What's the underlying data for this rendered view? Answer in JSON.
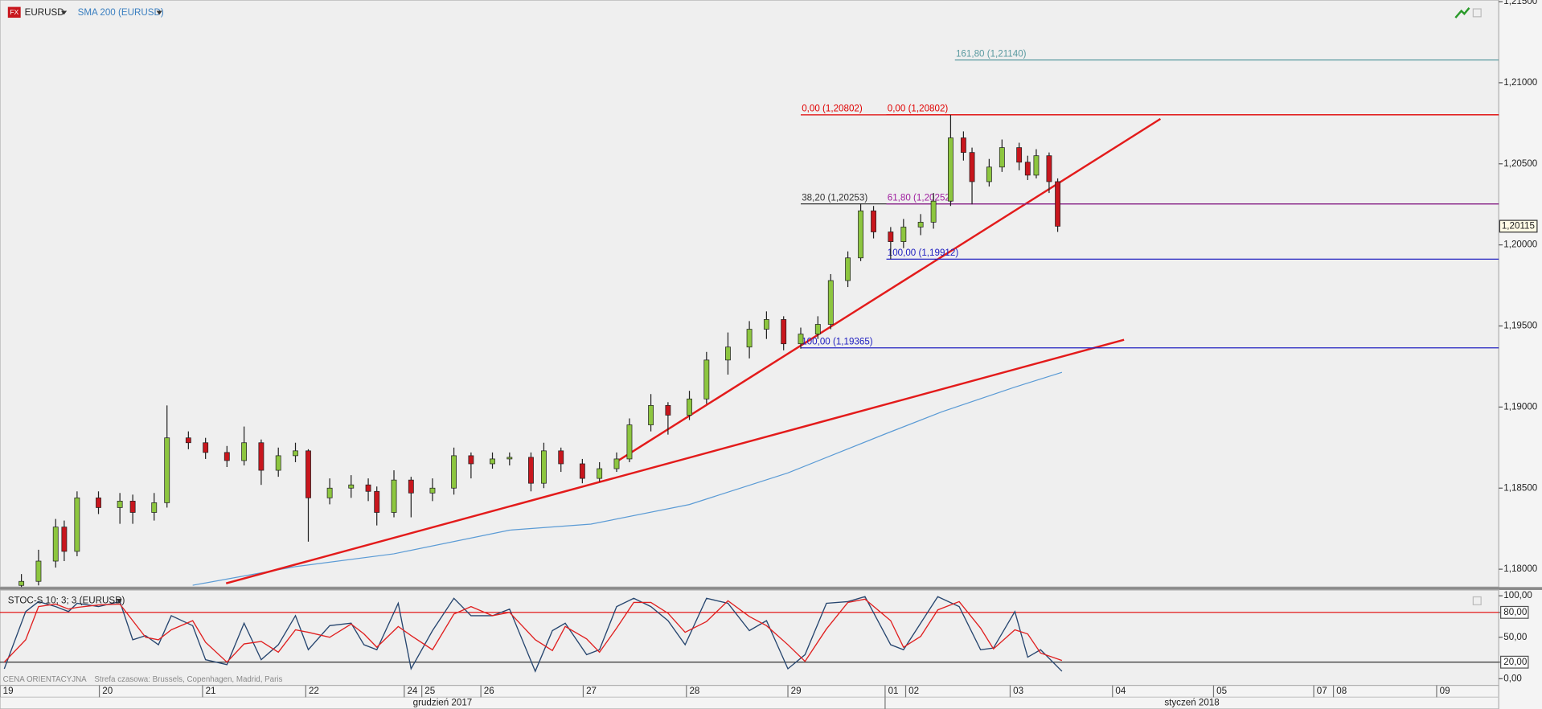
{
  "chart_data": [
    {
      "type": "candlestick",
      "symbol": "EURUSD",
      "xlim": [
        0,
        350
      ],
      "ylim": [
        1.1789,
        1.2151
      ],
      "yticks": [
        {
          "value": 1.18,
          "label": "1,18000"
        },
        {
          "value": 1.185,
          "label": "1,18500"
        },
        {
          "value": 1.19,
          "label": "1,19000"
        },
        {
          "value": 1.195,
          "label": "1,19500"
        },
        {
          "value": 1.2,
          "label": "1,20000"
        },
        {
          "value": 1.205,
          "label": "1,20500"
        },
        {
          "value": 1.21,
          "label": "1,21000"
        },
        {
          "value": 1.215,
          "label": "1,21500"
        }
      ],
      "up_color": "#8dc63f",
      "down_color": "#c8161d",
      "x": [
        5,
        9,
        13,
        15,
        18,
        23,
        28,
        31,
        36,
        39,
        44,
        48,
        53,
        57,
        61,
        65,
        69,
        72,
        77,
        82,
        86,
        88,
        92,
        96,
        101,
        106,
        110,
        115,
        119,
        124,
        127,
        131,
        136,
        140,
        144,
        147,
        152,
        156,
        161,
        165,
        170,
        175,
        179,
        183,
        187,
        191,
        194,
        198,
        201,
        204,
        208,
        211,
        215,
        218,
        222,
        225,
        227,
        231,
        234,
        238,
        240,
        242,
        245,
        247
      ],
      "open": [
        1.179,
        1.17925,
        1.1805,
        1.1826,
        1.1811,
        1.1844,
        1.1838,
        1.1842,
        1.1835,
        1.1841,
        1.1881,
        1.1878,
        1.1872,
        1.1867,
        1.1878,
        1.1861,
        1.187,
        1.1873,
        1.1844,
        1.185,
        1.1852,
        1.1848,
        1.1835,
        1.1855,
        1.1847,
        1.185,
        1.187,
        1.1865,
        1.1868,
        1.1869,
        1.1853,
        1.1873,
        1.1865,
        1.1856,
        1.1862,
        1.1868,
        1.1889,
        1.1901,
        1.1895,
        1.1905,
        1.1929,
        1.1937,
        1.1948,
        1.1954,
        1.1939,
        1.1945,
        1.1951,
        1.1978,
        1.1992,
        1.2021,
        1.2008,
        1.2002,
        1.2011,
        1.2014,
        1.2027,
        1.2066,
        1.2057,
        1.2039,
        1.2048,
        1.206,
        1.2051,
        1.2043,
        1.2055,
        1.2039
      ],
      "high": [
        1.1797,
        1.1812,
        1.1831,
        1.183,
        1.1848,
        1.1848,
        1.1847,
        1.1846,
        1.1847,
        1.1901,
        1.1885,
        1.1881,
        1.1876,
        1.1888,
        1.188,
        1.1875,
        1.1878,
        1.1874,
        1.1856,
        1.1858,
        1.1856,
        1.1851,
        1.1861,
        1.1857,
        1.1856,
        1.1875,
        1.1872,
        1.1872,
        1.1872,
        1.1872,
        1.1878,
        1.1875,
        1.1868,
        1.1866,
        1.1872,
        1.1893,
        1.1908,
        1.1903,
        1.191,
        1.1934,
        1.1946,
        1.1953,
        1.1959,
        1.1956,
        1.1949,
        1.1956,
        1.1982,
        1.1996,
        1.20253,
        1.2024,
        1.2011,
        1.2016,
        1.2019,
        1.2032,
        1.20802,
        1.207,
        1.206,
        1.2053,
        1.2065,
        1.2063,
        1.2055,
        1.2059,
        1.2057,
        1.2041
      ],
      "low": [
        1.1789,
        1.179,
        1.1801,
        1.1805,
        1.1808,
        1.1834,
        1.1828,
        1.1828,
        1.183,
        1.1838,
        1.1874,
        1.1868,
        1.1863,
        1.1864,
        1.1852,
        1.1857,
        1.1866,
        1.1817,
        1.184,
        1.1844,
        1.1842,
        1.1827,
        1.1832,
        1.1832,
        1.1842,
        1.1846,
        1.1856,
        1.1862,
        1.1864,
        1.1848,
        1.185,
        1.186,
        1.1853,
        1.1854,
        1.186,
        1.1866,
        1.1885,
        1.1883,
        1.1892,
        1.1902,
        1.192,
        1.193,
        1.1942,
        1.1935,
        1.1936,
        1.1942,
        1.1948,
        1.1974,
        1.199,
        1.2004,
        1.19912,
        1.1998,
        1.2006,
        1.201,
        1.2024,
        1.2052,
        1.2025,
        1.2036,
        1.2045,
        1.2046,
        1.204,
        1.2041,
        1.2032,
        1.2008
      ],
      "close": [
        1.17925,
        1.1805,
        1.1826,
        1.1811,
        1.1844,
        1.1838,
        1.1842,
        1.1835,
        1.1841,
        1.1881,
        1.1878,
        1.1872,
        1.1867,
        1.1878,
        1.1861,
        1.187,
        1.1873,
        1.1844,
        1.185,
        1.1852,
        1.1848,
        1.1835,
        1.1855,
        1.1847,
        1.185,
        1.187,
        1.1865,
        1.1868,
        1.1869,
        1.1853,
        1.1873,
        1.1865,
        1.1856,
        1.1862,
        1.1868,
        1.1889,
        1.1901,
        1.1895,
        1.1905,
        1.1929,
        1.1937,
        1.1948,
        1.1954,
        1.1939,
        1.1945,
        1.1951,
        1.1978,
        1.1992,
        1.2021,
        1.2008,
        1.2002,
        1.2011,
        1.2014,
        1.2027,
        1.2066,
        1.2057,
        1.2039,
        1.2048,
        1.206,
        1.2051,
        1.2043,
        1.2055,
        1.2039,
        1.20115
      ],
      "sma": {
        "name": "SMA 200 (EURUSD)",
        "color": "#5b9bd5",
        "x": [
          45,
          69,
          92,
          119,
          138,
          161,
          184,
          207,
          220,
          237,
          248
        ],
        "values": [
          1.17901,
          1.18016,
          1.18095,
          1.18241,
          1.18278,
          1.18399,
          1.18594,
          1.18837,
          1.18971,
          1.19123,
          1.19214
        ]
      },
      "trendlines": [
        {
          "color": "#e31b1b",
          "x": [
            52.8,
            262.5
          ],
          "values": [
            1.17913,
            1.19415
          ]
        },
        {
          "color": "#e31b1b",
          "x": [
            143.5,
            271
          ],
          "values": [
            1.18655,
            1.20777
          ]
        }
      ],
      "fib_levels": [
        {
          "label": "161,80 (1,21140)",
          "value": 1.2114,
          "x": 223,
          "color": "#5a9aa0"
        },
        {
          "label": "0,00 (1,20802)",
          "value": 1.20802,
          "x": 187,
          "color": "#e00000"
        },
        {
          "label": "0,00 (1,20802)",
          "value": 1.20802,
          "x": 207,
          "color": "#e00000"
        },
        {
          "label": "38,20 (1,20253)",
          "value": 1.20253,
          "x": 187,
          "color": "#333333"
        },
        {
          "label": "61,80 (1,20252)",
          "value": 1.20252,
          "x": 207,
          "color": "#a020a0"
        },
        {
          "label": "100,00 (1,19912)",
          "value": 1.19912,
          "x": 207,
          "color": "#2020c0"
        },
        {
          "label": "100,00 (1,19365)",
          "value": 1.19365,
          "x": 187,
          "color": "#2020c0"
        }
      ],
      "last_price": {
        "value": 1.20115,
        "label": "1,20115"
      }
    },
    {
      "type": "line",
      "title": "STOC-S 10; 3; 3 (EURUSD)",
      "xlim": [
        0,
        350
      ],
      "ylim": [
        -8,
        107
      ],
      "yticks": [
        {
          "value": 0,
          "label": "0,00"
        },
        {
          "value": 20,
          "label": "20,00"
        },
        {
          "value": 50,
          "label": "50,00"
        },
        {
          "value": 80,
          "label": "80,00"
        },
        {
          "value": 100,
          "label": "100,00"
        }
      ],
      "levels": [
        {
          "value": 80,
          "color": "#e00000"
        },
        {
          "value": 20,
          "color": "#333333"
        }
      ],
      "x": [
        1,
        6,
        9,
        13,
        16,
        18,
        23,
        28,
        31,
        34,
        37,
        40,
        45,
        48,
        53,
        57,
        61,
        65,
        69,
        72,
        77,
        82,
        85,
        88,
        93,
        96,
        101,
        106,
        110,
        115,
        119,
        125,
        129,
        132,
        137,
        140,
        144,
        148,
        152,
        156,
        160,
        165,
        170,
        175,
        179,
        184,
        188,
        193,
        198,
        202,
        208,
        211,
        215,
        219,
        224,
        229,
        232,
        237,
        240,
        243,
        248
      ],
      "series": [
        {
          "color": "#27466f",
          "values": [
            12,
            81,
            93,
            87,
            81,
            91,
            87,
            93,
            47,
            52,
            41,
            76,
            64,
            23,
            17,
            67,
            23,
            41,
            76,
            35,
            64,
            67,
            41,
            35,
            91,
            12,
            58,
            97,
            76,
            76,
            84,
            9,
            58,
            67,
            29,
            35,
            87,
            97,
            87,
            70,
            41,
            97,
            91,
            58,
            70,
            12,
            29,
            91,
            93,
            99,
            41,
            35,
            67,
            99,
            87,
            35,
            37,
            81,
            26,
            35,
            9
          ]
        },
        {
          "color": "#e02020",
          "values": [
            20,
            47,
            87,
            90,
            84,
            86,
            89,
            90,
            70,
            50,
            47,
            59,
            70,
            44,
            20,
            42,
            45,
            32,
            59,
            56,
            50,
            66,
            54,
            38,
            63,
            52,
            35,
            78,
            87,
            76,
            80,
            47,
            34,
            63,
            48,
            32,
            61,
            92,
            92,
            79,
            56,
            69,
            94,
            75,
            64,
            41,
            21,
            60,
            92,
            96,
            70,
            38,
            51,
            83,
            93,
            61,
            36,
            59,
            54,
            31,
            22
          ]
        }
      ],
      "xticks": [
        {
          "value": 0,
          "label": "19"
        },
        {
          "value": 23.2,
          "label": "20"
        },
        {
          "value": 47.3,
          "label": "21"
        },
        {
          "value": 71.4,
          "label": "22"
        },
        {
          "value": 94.4,
          "label": "24"
        },
        {
          "value": 98.5,
          "label": "25"
        },
        {
          "value": 112.3,
          "label": "26"
        },
        {
          "value": 136.2,
          "label": "27"
        },
        {
          "value": 160.3,
          "label": "28"
        },
        {
          "value": 184,
          "label": "29"
        },
        {
          "value": 206.7,
          "label": "01"
        },
        {
          "value": 211.5,
          "label": "02"
        },
        {
          "value": 235.9,
          "label": "03"
        },
        {
          "value": 259.8,
          "label": "04"
        },
        {
          "value": 283.4,
          "label": "05"
        },
        {
          "value": 306.8,
          "label": "07"
        },
        {
          "value": 311.4,
          "label": "08"
        },
        {
          "value": 335.5,
          "label": "09"
        }
      ],
      "months": [
        {
          "value": 0,
          "label": "grudzień 2017"
        },
        {
          "value": 206.7,
          "label": "styczeń 2018"
        }
      ],
      "footer": [
        "CENA ORIENTACYJNA",
        "Strefa czasowa: Brussels, Copenhagen, Madrid, Paris"
      ]
    }
  ]
}
